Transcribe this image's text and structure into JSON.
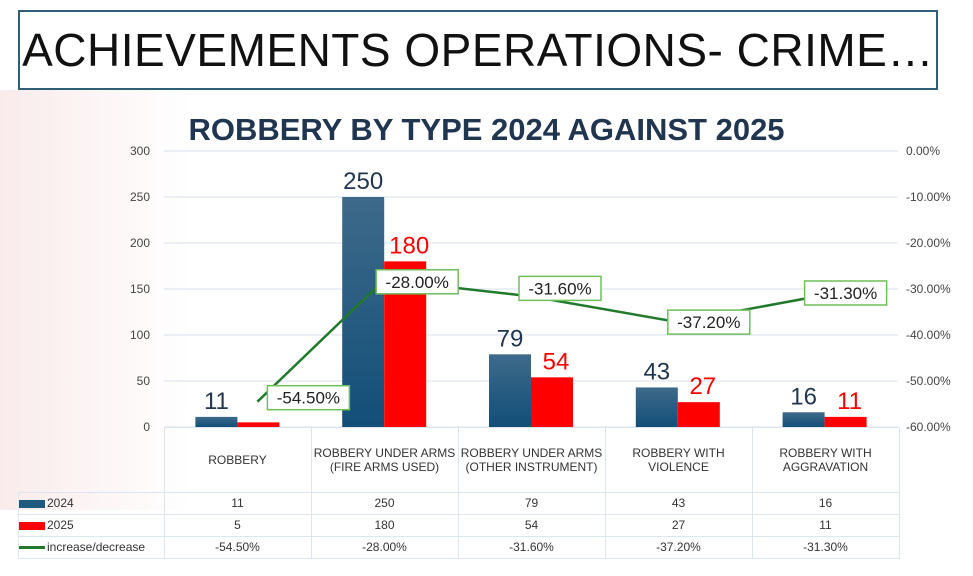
{
  "slide_title": "ACHIEVEMENTS OPERATIONS- CRIME…",
  "chart_data": {
    "type": "bar+line",
    "title": "ROBBERY BY TYPE 2024 AGAINST 2025",
    "categories": [
      "ROBBERY",
      "ROBBERY UNDER ARMS (FIRE ARMS USED)",
      "ROBBERY UNDER ARMS (OTHER INSTRUMENT)",
      "ROBBERY WITH VIOLENCE",
      "ROBBERY WITH AGGRAVATION"
    ],
    "series": [
      {
        "name": "2024",
        "type": "bar",
        "axis": "left",
        "color": "#1f5a7e",
        "values": [
          11,
          250,
          79,
          43,
          16
        ],
        "labels": [
          "11",
          "250",
          "79",
          "43",
          "16"
        ]
      },
      {
        "name": "2025",
        "type": "bar",
        "axis": "left",
        "color": "#ff0000",
        "values": [
          5,
          180,
          54,
          27,
          11
        ],
        "labels": [
          "",
          "180",
          "54",
          "27",
          "11"
        ]
      },
      {
        "name": "increase/decrease",
        "type": "line",
        "axis": "right",
        "color": "#217a2b",
        "values": [
          -54.5,
          -28.0,
          -31.6,
          -37.2,
          -31.3
        ],
        "labels": [
          "-54.50%",
          "-28.00%",
          "-31.60%",
          "-37.20%",
          "-31.30%"
        ]
      }
    ],
    "y_left": {
      "range": [
        0,
        300
      ],
      "ticks": [
        "0",
        "50",
        "100",
        "150",
        "200",
        "250",
        "300"
      ]
    },
    "y_right": {
      "range": [
        -60,
        0
      ],
      "ticks": [
        "-60.00%",
        "-50.00%",
        "-40.00%",
        "-30.00%",
        "-20.00%",
        "-10.00%",
        "0.00%"
      ]
    },
    "grid": true,
    "legend": "data-table",
    "table": {
      "rows": [
        {
          "key": "2024",
          "cells": [
            "11",
            "250",
            "79",
            "43",
            "16"
          ]
        },
        {
          "key": "2025",
          "cells": [
            "5",
            "180",
            "54",
            "27",
            "11"
          ]
        },
        {
          "key": "increase/decrease",
          "cells": [
            "-54.50%",
            "-28.00%",
            "-31.60%",
            "-37.20%",
            "-31.30%"
          ]
        }
      ]
    }
  }
}
